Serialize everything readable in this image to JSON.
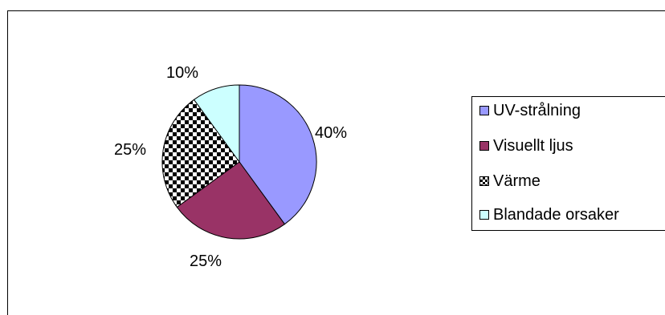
{
  "chart_data": {
    "type": "pie",
    "categories": [
      "UV-strålning",
      "Visuellt ljus",
      "Värme",
      "Blandade orsaker"
    ],
    "values": [
      40,
      25,
      25,
      10
    ],
    "labels": [
      "40%",
      "25%",
      "25%",
      "10%"
    ],
    "colors": [
      "#9999FF",
      "#993366",
      "checker",
      "#CCFFFF"
    ],
    "legend_position": "right"
  }
}
